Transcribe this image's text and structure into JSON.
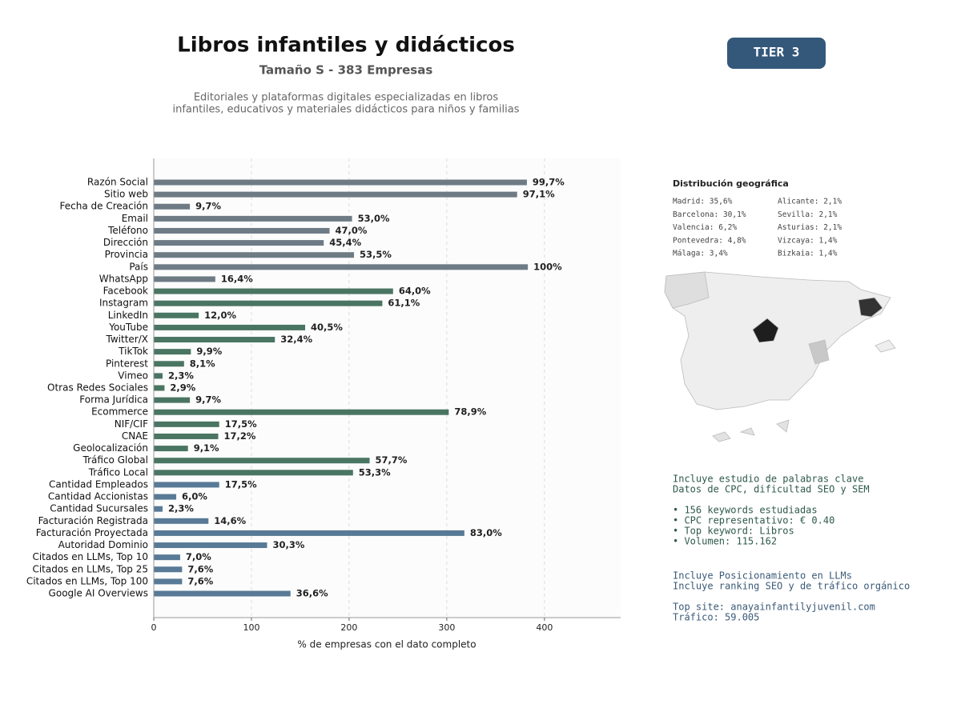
{
  "header": {
    "title": "Libros infantiles y didácticos",
    "subtitle": "Tamaño S - 383 Empresas",
    "description": [
      "Editoriales y plataformas digitales especializadas en libros",
      "infantiles, educativos y materiales didácticos para niños y familias"
    ],
    "badge": "TIER 3"
  },
  "chart_data": {
    "type": "barh",
    "categories": [
      "Razón Social",
      "Sitio web",
      "Fecha de Creación",
      "Email",
      "Teléfono",
      "Dirección",
      "Provincia",
      "País",
      "WhatsApp",
      "Facebook",
      "Instagram",
      "LinkedIn",
      "YouTube",
      "Twitter/X",
      "TikTok",
      "Pinterest",
      "Vimeo",
      "Otras Redes Sociales",
      "Forma Jurídica",
      "Ecommerce",
      "NIF/CIF",
      "CNAE",
      "Geolocalización",
      "Tráfico Global",
      "Tráfico Local",
      "Cantidad Empleados",
      "Cantidad Accionistas",
      "Cantidad Sucursales",
      "Facturación Registrada",
      "Facturación Proyectada",
      "Autoridad Dominio",
      "Citados en LLMs, Top 10",
      "Citados en LLMs, Top 25",
      "Citados en LLMs, Top 100",
      "Google AI Overviews"
    ],
    "values": [
      382,
      372,
      37,
      203,
      180,
      174,
      205,
      383,
      63,
      245,
      234,
      46,
      155,
      124,
      38,
      31,
      9,
      11,
      37,
      302,
      67,
      66,
      35,
      221,
      204,
      67,
      23,
      9,
      56,
      318,
      116,
      27,
      29,
      29,
      140
    ],
    "value_labels": [
      "99,7%",
      "97,1%",
      "9,7%",
      "53,0%",
      "47,0%",
      "45,4%",
      "53,5%",
      "100%",
      "16,4%",
      "64,0%",
      "61,1%",
      "12,0%",
      "40,5%",
      "32,4%",
      "9,9%",
      "8,1%",
      "2,3%",
      "2,9%",
      "9,7%",
      "78,9%",
      "17,5%",
      "17,2%",
      "9,1%",
      "57,7%",
      "53,3%",
      "17,5%",
      "6,0%",
      "2,3%",
      "14,6%",
      "83,0%",
      "30,3%",
      "7,0%",
      "7,6%",
      "7,6%",
      "36,6%"
    ],
    "colors": [
      "#6e7b85",
      "#6e7b85",
      "#6e7b85",
      "#6e7b85",
      "#6e7b85",
      "#6e7b85",
      "#6e7b85",
      "#6e7b85",
      "#6e7b85",
      "#4a7563",
      "#4a7563",
      "#4a7563",
      "#4a7563",
      "#4a7563",
      "#4a7563",
      "#4a7563",
      "#4a7563",
      "#4a7563",
      "#4a7563",
      "#4a7563",
      "#4a7563",
      "#4a7563",
      "#4a7563",
      "#4a7563",
      "#4a7563",
      "#587a96",
      "#587a96",
      "#587a96",
      "#587a96",
      "#587a96",
      "#587a96",
      "#587a96",
      "#587a96",
      "#587a96",
      "#587a96"
    ],
    "xlim": [
      0,
      478
    ],
    "xticks": [
      0,
      100,
      200,
      300,
      400
    ],
    "xlabel": "% de empresas con el dato completo",
    "grid": true
  },
  "geo": {
    "title": "Distribución geográfica",
    "left": [
      "Madrid: 35,6%",
      "Barcelona: 30,1%",
      "Valencia: 6,2%",
      "Pontevedra: 4,8%",
      "Málaga: 3,4%"
    ],
    "right": [
      "Alicante: 2,1%",
      "Sevilla: 2,1%",
      "Asturias: 2,1%",
      "Vizcaya: 1,4%",
      "Bizkaia: 1,4%"
    ]
  },
  "keywords": [
    "Incluye estudio de palabras clave",
    "Datos de CPC, dificultad SEO y SEM",
    "• 156 keywords estudiadas",
    "• CPC representativo: € 0.40",
    "• Top keyword: Libros",
    "• Volumen: 115.162"
  ],
  "llm": [
    "Incluye Posicionamiento en LLMs",
    "Incluye ranking SEO y de tráfico orgánico",
    "Top site: anayainfantilyjuvenil.com",
    "Tráfico: 59.005"
  ]
}
